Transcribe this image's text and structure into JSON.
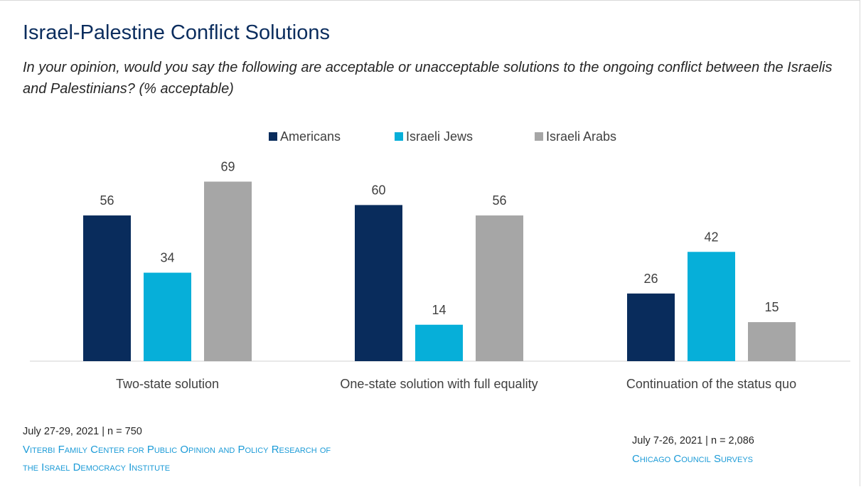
{
  "chart_data": {
    "type": "bar",
    "title": "Israel-Palestine Conflict Solutions",
    "subtitle": "In your opinion, would you say the following are acceptable or unacceptable solutions to the ongoing conflict between the Israelis and Palestinians? (% acceptable)",
    "categories": [
      "Two-state solution",
      "One-state solution with full equality",
      "Continuation of the status quo"
    ],
    "series": [
      {
        "name": "Americans",
        "color": "#092c5c",
        "values": [
          56,
          60,
          26
        ]
      },
      {
        "name": "Israeli Jews",
        "color": "#06afd9",
        "values": [
          34,
          14,
          42
        ]
      },
      {
        "name": "Israeli Arabs",
        "color": "#a6a6a6",
        "values": [
          69,
          56,
          15
        ]
      }
    ],
    "ylim": [
      0,
      100
    ],
    "grid": false,
    "legend": "top-center",
    "data_labels": true
  },
  "sources": {
    "left": {
      "date": "July 27-29, 2021 | n = 750",
      "org_line1": "Viterbi Family Center for Public Opinion and Policy Research of",
      "org_line2": "the Israel Democracy Institute"
    },
    "right": {
      "date": "July 7-26, 2021 | n = 2,086",
      "org": "Chicago Council Surveys"
    }
  }
}
